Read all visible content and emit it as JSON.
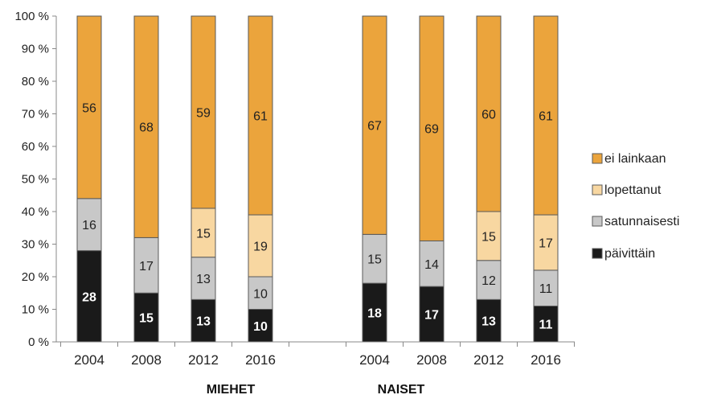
{
  "chart_data": {
    "type": "bar",
    "stacked": true,
    "percent": true,
    "ylim": [
      0,
      100
    ],
    "yticks": [
      "0 %",
      "10 %",
      "20 %",
      "30 %",
      "40 %",
      "50 %",
      "60 %",
      "70 %",
      "80 %",
      "90 %",
      "100 %"
    ],
    "groups": [
      {
        "label": "MIEHET",
        "categories": [
          "2004",
          "2008",
          "2012",
          "2016"
        ]
      },
      {
        "label": "NAISET",
        "categories": [
          "2004",
          "2008",
          "2012",
          "2016"
        ]
      }
    ],
    "series": [
      {
        "name": "päivittäin",
        "color": "#1a1a1a",
        "values": [
          [
            28,
            15,
            13,
            10
          ],
          [
            18,
            17,
            13,
            11
          ]
        ]
      },
      {
        "name": "satunnaisesti",
        "color": "#c8c8c8",
        "values": [
          [
            16,
            17,
            13,
            10
          ],
          [
            15,
            14,
            12,
            11
          ]
        ]
      },
      {
        "name": "lopettanut",
        "color": "#f8d7a1",
        "values": [
          [
            null,
            null,
            15,
            19
          ],
          [
            null,
            null,
            15,
            17
          ]
        ]
      },
      {
        "name": "ei lainkaan",
        "color": "#eba43c",
        "values": [
          [
            56,
            68,
            59,
            61
          ],
          [
            67,
            69,
            60,
            61
          ]
        ]
      }
    ],
    "legend_position": "right",
    "legend_order": [
      "ei lainkaan",
      "lopettanut",
      "satunnaisesti",
      "päivittäin"
    ]
  }
}
